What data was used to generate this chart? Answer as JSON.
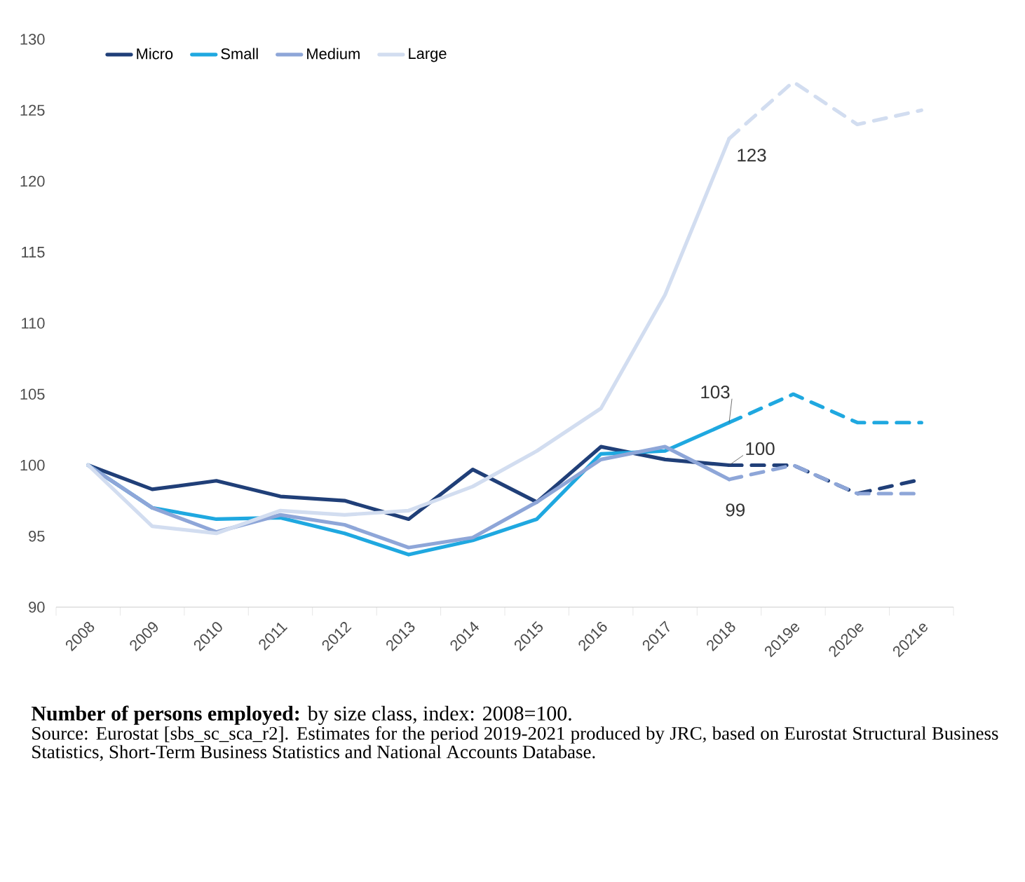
{
  "chart_data": {
    "type": "line",
    "title": "**Number of persons employed:** by size class, index: 2008=100.",
    "categories": [
      "2008",
      "2009",
      "2010",
      "2011",
      "2012",
      "2013",
      "2014",
      "2015",
      "2016",
      "2017",
      "2018",
      "2019e",
      "2020e",
      "2021e"
    ],
    "ylim": [
      90,
      130
    ],
    "yticks": [
      90,
      95,
      100,
      105,
      110,
      115,
      120,
      125,
      130
    ],
    "grid": false,
    "legend": "top",
    "marker": "none",
    "series": [
      {
        "name": "Micro",
        "color": "#203f78",
        "line_style": "solid",
        "values": [
          100,
          98.3,
          98.9,
          97.8,
          97.5,
          96.2,
          99.7,
          97.4,
          101.3,
          100.4,
          100,
          null,
          null,
          null
        ]
      },
      {
        "name": "Small",
        "color": "#1fa8e0",
        "line_style": "solid",
        "values": [
          100,
          97,
          96.2,
          96.3,
          95.2,
          93.7,
          94.7,
          96.2,
          100.8,
          101,
          103,
          null,
          null,
          null
        ]
      },
      {
        "name": "Medium",
        "color": "#8ea6d8",
        "line_style": "solid",
        "values": [
          100,
          97,
          95.3,
          96.5,
          95.8,
          94.2,
          94.9,
          97.4,
          100.4,
          101.3,
          99,
          null,
          null,
          null
        ]
      },
      {
        "name": "Large",
        "color": "#d2ddf0",
        "line_style": "solid",
        "values": [
          100,
          95.7,
          95.2,
          96.8,
          96.5,
          96.8,
          98.5,
          101,
          104,
          112,
          123,
          null,
          null,
          null
        ]
      },
      {
        "color": "#203f78",
        "line_style": "dashed",
        "values": [
          null,
          null,
          null,
          null,
          null,
          null,
          null,
          null,
          null,
          null,
          100,
          100,
          98,
          99
        ]
      },
      {
        "color": "#1fa8e0",
        "line_style": "dashed",
        "values": [
          null,
          null,
          null,
          null,
          null,
          null,
          null,
          null,
          null,
          null,
          103,
          105,
          103,
          103
        ]
      },
      {
        "color": "#8ea6d8",
        "line_style": "dashed",
        "values": [
          null,
          null,
          null,
          null,
          null,
          null,
          null,
          null,
          null,
          null,
          99,
          100,
          98,
          98
        ]
      },
      {
        "color": "#d2ddf0",
        "line_style": "dashed",
        "values": [
          null,
          null,
          null,
          null,
          null,
          null,
          null,
          null,
          null,
          null,
          123,
          127,
          124,
          125
        ]
      }
    ],
    "annotations": [
      {
        "text": "123",
        "x": "2018",
        "y": 123
      },
      {
        "text": "103",
        "x": "2018",
        "y": 103
      },
      {
        "text": "100",
        "x": "2018",
        "y": 100
      },
      {
        "text": "99",
        "x": "2018",
        "y": 99
      },
      "Source:  Eurostat [sbs_sc_sca_r2]. Estimates for the period 2019-2021 produced by JRC, based on Eurostat Structural Business Statistics, Short-Term Business Statistics and National Accounts Database."
    ]
  }
}
